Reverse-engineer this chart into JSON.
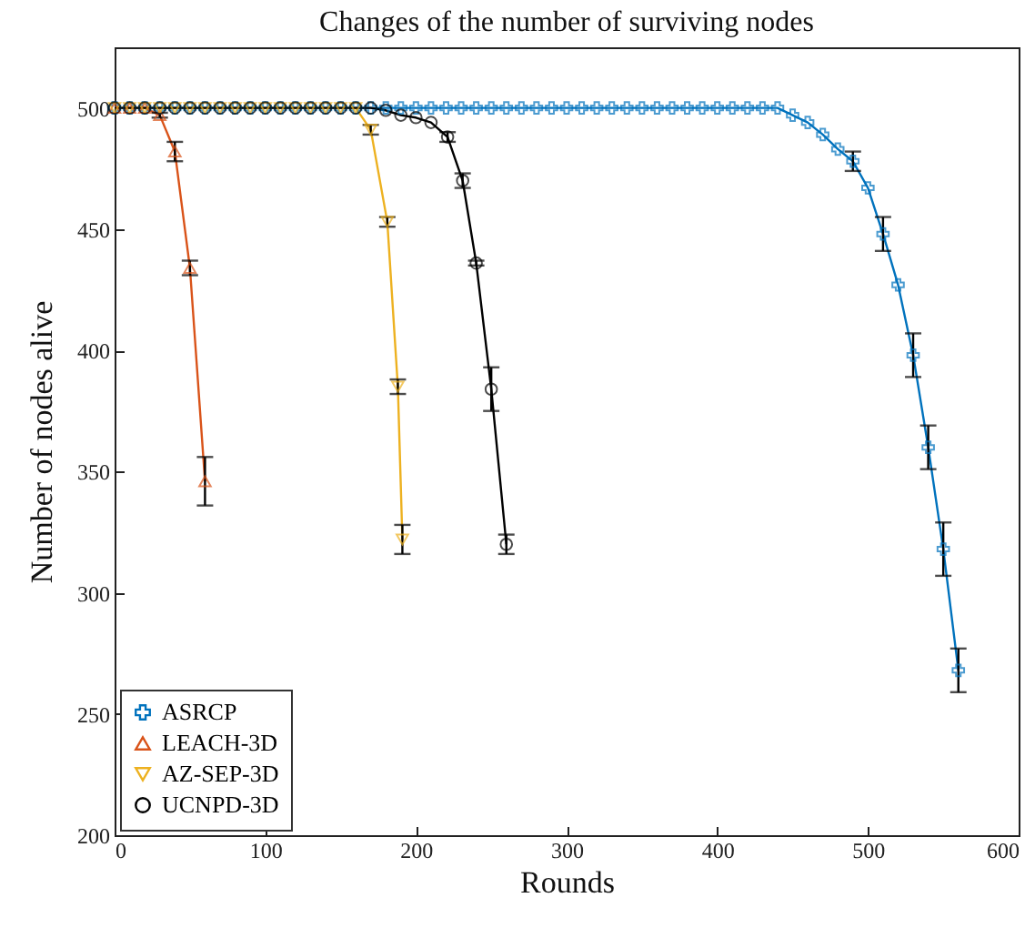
{
  "chart_data": {
    "type": "line",
    "title": "Changes of the number of surviving nodes",
    "xlabel": "Rounds",
    "ylabel": "Number of nodes alive",
    "xlim": [
      0,
      600
    ],
    "xticks": [
      0,
      100,
      200,
      300,
      400,
      500,
      600
    ],
    "ylim": [
      200,
      525
    ],
    "yticks": [
      200,
      250,
      300,
      350,
      400,
      450,
      500
    ],
    "grid": false,
    "legend": "bottom left",
    "line_style": "solid",
    "series": [
      {
        "name": "ASRCP",
        "color": "#0072bd",
        "marker": "cross",
        "x": [
          0,
          10,
          20,
          30,
          40,
          50,
          60,
          70,
          80,
          90,
          100,
          110,
          120,
          130,
          140,
          150,
          160,
          170,
          180,
          190,
          200,
          210,
          220,
          230,
          240,
          250,
          260,
          270,
          280,
          290,
          300,
          310,
          320,
          330,
          340,
          350,
          360,
          370,
          380,
          390,
          400,
          410,
          420,
          430,
          440,
          450,
          460,
          470,
          480,
          490,
          500,
          510,
          520,
          530,
          540,
          550,
          560
        ],
        "values": [
          500,
          500,
          500,
          500,
          500,
          500,
          500,
          500,
          500,
          500,
          500,
          500,
          500,
          500,
          500,
          500,
          500,
          500,
          500,
          500,
          500,
          500,
          500,
          500,
          500,
          500,
          500,
          500,
          500,
          500,
          500,
          500,
          500,
          500,
          500,
          500,
          500,
          500,
          500,
          500,
          500,
          500,
          500,
          500,
          500,
          497,
          494,
          489,
          483,
          478,
          467,
          448,
          427,
          398,
          360,
          318,
          268
        ],
        "errors": [
          null,
          null,
          null,
          null,
          null,
          null,
          null,
          null,
          null,
          null,
          null,
          null,
          null,
          null,
          null,
          null,
          null,
          null,
          null,
          null,
          null,
          null,
          null,
          null,
          null,
          null,
          null,
          null,
          null,
          null,
          null,
          null,
          null,
          null,
          null,
          null,
          null,
          null,
          null,
          null,
          null,
          null,
          null,
          null,
          null,
          null,
          null,
          null,
          null,
          4,
          null,
          7,
          null,
          9,
          9,
          11,
          9
        ]
      },
      {
        "name": "LEACH-3D",
        "color": "#d95319",
        "marker": "triangle",
        "x": [
          0,
          10,
          20,
          30,
          40,
          50,
          60
        ],
        "values": [
          500,
          500,
          500,
          497,
          482,
          434,
          346
        ],
        "errors": [
          null,
          null,
          null,
          1,
          4,
          3,
          10
        ]
      },
      {
        "name": "AZ-SEP-3D",
        "color": "#edb120",
        "marker": "triangle-down",
        "x": [
          0,
          10,
          20,
          30,
          40,
          50,
          60,
          70,
          80,
          90,
          100,
          110,
          120,
          130,
          140,
          150,
          160,
          170,
          181,
          188,
          191
        ],
        "values": [
          500,
          500,
          500,
          500,
          500,
          500,
          500,
          500,
          500,
          500,
          500,
          500,
          500,
          500,
          500,
          500,
          500,
          491,
          453,
          385,
          322
        ],
        "errors": [
          null,
          null,
          null,
          null,
          null,
          null,
          null,
          null,
          null,
          null,
          null,
          null,
          null,
          null,
          null,
          null,
          null,
          2,
          2,
          3,
          6
        ]
      },
      {
        "name": "UCNPD-3D",
        "color": "#000000",
        "marker": "circle",
        "x": [
          0,
          10,
          20,
          30,
          40,
          50,
          60,
          70,
          80,
          90,
          100,
          110,
          120,
          130,
          140,
          150,
          160,
          170,
          180,
          190,
          200,
          210,
          221,
          231,
          240,
          250,
          260
        ],
        "values": [
          500,
          500,
          500,
          500,
          500,
          500,
          500,
          500,
          500,
          500,
          500,
          500,
          500,
          500,
          500,
          500,
          500,
          500,
          499,
          497,
          496,
          494,
          488,
          470,
          436,
          384,
          320
        ],
        "errors": [
          null,
          null,
          null,
          null,
          null,
          null,
          null,
          null,
          null,
          null,
          null,
          null,
          null,
          null,
          null,
          null,
          null,
          null,
          null,
          null,
          null,
          null,
          2,
          3,
          1,
          9,
          4
        ]
      }
    ]
  }
}
